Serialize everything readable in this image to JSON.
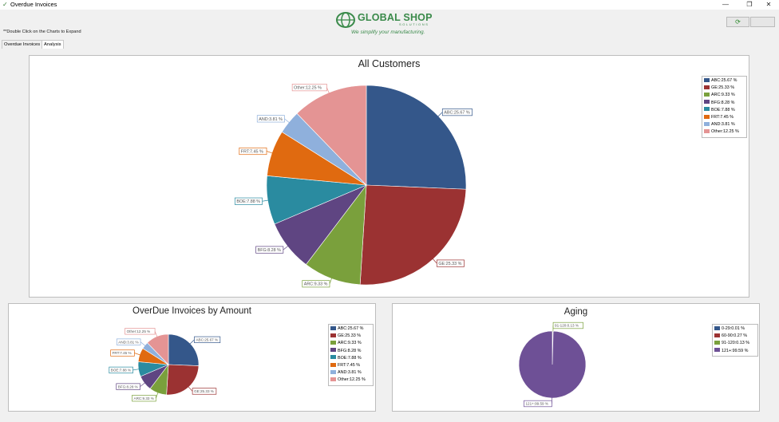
{
  "window": {
    "title": "Overdue Invoices",
    "app_icon": "app-check-icon",
    "minimize": "—",
    "maximize": "❐",
    "close": "✕"
  },
  "logo": {
    "brand": "GLOBAL SHOP",
    "brand_sub": "SOLUTIONS",
    "tagline": "We simplify your manufacturing."
  },
  "hint": "**Double Click on the Charts to Expand",
  "toolbar": {
    "refresh_icon": "refresh-icon"
  },
  "tabs": [
    {
      "label": "Overdue Invoices",
      "active": false
    },
    {
      "label": "Analysis",
      "active": true
    }
  ],
  "colors": {
    "abc": "#34578a",
    "ge": "#9b3232",
    "arc": "#7aa03c",
    "bfg": "#5f4582",
    "boe": "#2a8ba0",
    "frt": "#e06a10",
    "and": "#8fb0dc",
    "other": "#e49494"
  },
  "panels": {
    "all_customers": {
      "title": "All Customers",
      "legend": [
        "ABC:25.67 %",
        "GE:25.33 %",
        "ARC:9.33 %",
        "BFG:8.28 %",
        "BOE:7.88 %",
        "FRT:7.45 %",
        "AND:3.81 %",
        "Other:12.25 %"
      ]
    },
    "by_amount": {
      "title": "OverDue Invoices by Amount",
      "legend": [
        "ABC:25.67 %",
        "GE:25.33 %",
        "ARC:9.33 %",
        "BFG:8.28 %",
        "BOE:7.88 %",
        "FRT:7.45 %",
        "AND:3.81 %",
        "Other:12.25 %"
      ]
    },
    "aging": {
      "title": "Aging",
      "legend": [
        "0-29:0.01 %",
        "60-90:0.27 %",
        "91-120:0.13 %",
        "121+:99.59 %"
      ]
    }
  },
  "chart_data": [
    {
      "type": "pie",
      "title": "All Customers",
      "categories": [
        "ABC",
        "GE",
        "ARC",
        "BFG",
        "BOE",
        "FRT",
        "AND",
        "Other"
      ],
      "values": [
        25.67,
        25.33,
        9.33,
        8.28,
        7.88,
        7.45,
        3.81,
        12.25
      ],
      "labels": [
        "ABC:25.67 %",
        "GE:25.33 %",
        "ARC:9.33 %",
        "BFG:8.28 %",
        "BOE:7.88 %",
        "FRT:7.45 %",
        "AND:3.81 %",
        "Other:12.25 %"
      ],
      "colors": [
        "#34578a",
        "#9b3232",
        "#7aa03c",
        "#5f4582",
        "#2a8ba0",
        "#e06a10",
        "#8fb0dc",
        "#e49494"
      ],
      "legend_position": "top-right"
    },
    {
      "type": "pie",
      "title": "OverDue Invoices by Amount",
      "categories": [
        "ABC",
        "GE",
        "ARC",
        "BFG",
        "BOE",
        "FRT",
        "AND",
        "Other"
      ],
      "values": [
        25.67,
        25.33,
        9.33,
        8.28,
        7.88,
        7.45,
        3.81,
        12.25
      ],
      "labels": [
        "ABC:25.67 %",
        "GE:25.33 %",
        "ARC:9.33 %",
        "BFG:8.28 %",
        "BOE:7.88 %",
        "FRT:7.45 %",
        "AND:3.81 %",
        "Other:12.25 %"
      ],
      "colors": [
        "#34578a",
        "#9b3232",
        "#7aa03c",
        "#5f4582",
        "#2a8ba0",
        "#e06a10",
        "#8fb0dc",
        "#e49494"
      ],
      "legend_position": "top-right"
    },
    {
      "type": "pie",
      "title": "Aging",
      "categories": [
        "0-29",
        "60-90",
        "91-120",
        "121+"
      ],
      "values": [
        0.01,
        0.27,
        0.13,
        99.59
      ],
      "labels": [
        "0-29:0.01 %",
        "60-90:0.27 %",
        "91-120:0.13 %",
        "121+:99.59 %"
      ],
      "shown_labels": [
        "91-120:0.13 %",
        "121+:99.59 %"
      ],
      "colors": [
        "#34578a",
        "#9b3232",
        "#7aa03c",
        "#6e5096"
      ],
      "legend_position": "top-right"
    }
  ]
}
